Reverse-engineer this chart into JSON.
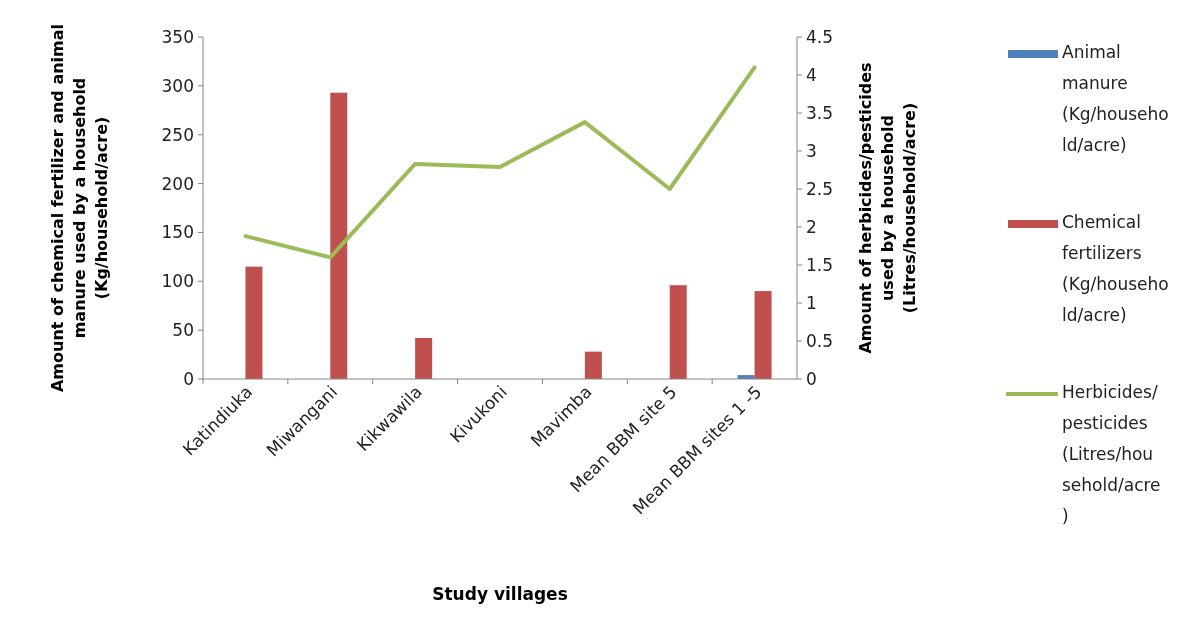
{
  "chart_data": {
    "type": "bar",
    "xlabel": "Study villages",
    "ylabel": "Amount of chemical fertilizer and animal manure used by a household (Kg/household/acre)",
    "y2label": "Amount of herbicides/pesticides used by a household (Litres/household/acre)",
    "categories": [
      "Katindiuka",
      "Miwangani",
      "Kikwawila",
      "Kivukoni",
      "Mavimba",
      "Mean BBM site 5",
      "Mean BBM sites 1 -5"
    ],
    "series": [
      {
        "name": "Animal manure (Kg/household/acre)",
        "color": "#4f81bd",
        "values": [
          0,
          0,
          0,
          0,
          0,
          0,
          4
        ]
      },
      {
        "name": "Chemical fertilizers (Kg/household/acre)",
        "color": "#c0504d",
        "values": [
          115,
          293,
          42,
          0,
          28,
          96,
          90
        ]
      },
      {
        "name": "Herbicides/ pesticides (Litres/household/acre)",
        "color": "#9bbb59",
        "type": "line",
        "axis": "y2",
        "values": [
          1.88,
          1.6,
          2.83,
          2.79,
          3.38,
          2.5,
          4.1
        ]
      }
    ],
    "ylim": [
      0,
      350
    ],
    "yticks": [
      0,
      50,
      100,
      150,
      200,
      250,
      300,
      350
    ],
    "y2lim": [
      0,
      4.5
    ],
    "y2ticks": [
      0,
      0.5,
      1,
      1.5,
      2,
      2.5,
      3,
      3.5,
      4,
      4.5
    ],
    "legend": "right",
    "grid": false
  }
}
